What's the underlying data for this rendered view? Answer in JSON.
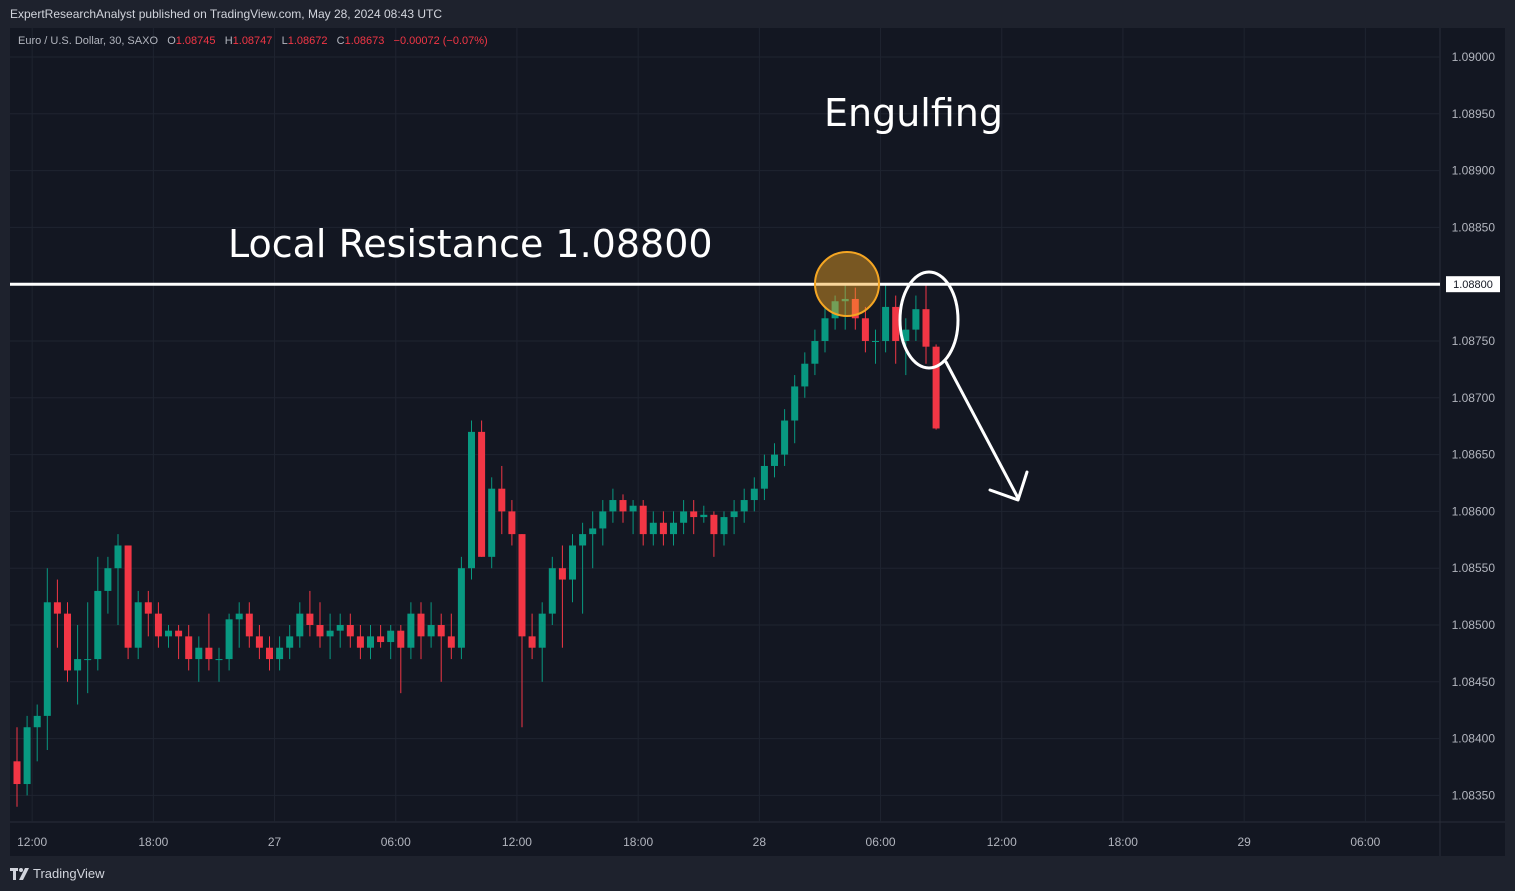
{
  "header": {
    "published": "ExpertResearchAnalyst published on TradingView.com, May 28, 2024 08:43 UTC"
  },
  "legend": {
    "symbol": "Euro / U.S. Dollar, 30, SAXO",
    "o_label": "O",
    "o_value": "1.08745",
    "h_label": "H",
    "h_value": "1.08747",
    "l_label": "L",
    "l_value": "1.08672",
    "c_label": "C",
    "c_value": "1.08673",
    "change": "−0.00072 (−0.07%)"
  },
  "footer": {
    "brand": "TradingView"
  },
  "colors": {
    "up": "#089981",
    "down": "#f23645",
    "background": "#131722",
    "grid": "#1f2430",
    "text": "#b2b5be",
    "highlight": "#f5a623"
  },
  "chart_data": {
    "type": "candlestick",
    "symbol": "EURUSD",
    "timeframe": "30",
    "ylim": [
      1.0832,
      1.0904
    ],
    "y_ticks": [
      "1.09000",
      "1.08950",
      "1.08900",
      "1.08850",
      "1.08800",
      "1.08750",
      "1.08700",
      "1.08650",
      "1.08600",
      "1.08550",
      "1.08500",
      "1.08450",
      "1.08400",
      "1.08350"
    ],
    "x_ticks": [
      "12:00",
      "18:00",
      "27",
      "06:00",
      "12:00",
      "18:00",
      "28",
      "06:00",
      "12:00",
      "18:00",
      "29",
      "06:00"
    ],
    "x_tick_index": [
      1.5,
      13.5,
      25.5,
      37.5,
      49.5,
      61.5,
      73.5,
      85.5,
      97.5,
      109.5,
      121.5,
      133.5
    ],
    "candles": [
      [
        1.0838,
        1.0841,
        1.0834,
        1.0836
      ],
      [
        1.0836,
        1.0842,
        1.0835,
        1.0841
      ],
      [
        1.0841,
        1.0843,
        1.0838,
        1.0842
      ],
      [
        1.0842,
        1.0855,
        1.0839,
        1.0852
      ],
      [
        1.0852,
        1.0854,
        1.0848,
        1.0851
      ],
      [
        1.0851,
        1.0852,
        1.0845,
        1.0846
      ],
      [
        1.0846,
        1.085,
        1.0843,
        1.0847
      ],
      [
        1.0847,
        1.0852,
        1.0844,
        1.0847
      ],
      [
        1.0847,
        1.0856,
        1.0846,
        1.0853
      ],
      [
        1.0853,
        1.0856,
        1.0851,
        1.0855
      ],
      [
        1.0855,
        1.0858,
        1.085,
        1.0857
      ],
      [
        1.0857,
        1.0857,
        1.0847,
        1.0848
      ],
      [
        1.0848,
        1.0853,
        1.0847,
        1.0852
      ],
      [
        1.0852,
        1.0853,
        1.0849,
        1.0851
      ],
      [
        1.0851,
        1.0852,
        1.0848,
        1.0849
      ],
      [
        1.0849,
        1.085,
        1.0848,
        1.08495
      ],
      [
        1.08495,
        1.085,
        1.0847,
        1.0849
      ],
      [
        1.0849,
        1.085,
        1.0846,
        1.0847
      ],
      [
        1.0847,
        1.0849,
        1.0845,
        1.0848
      ],
      [
        1.0848,
        1.0851,
        1.0846,
        1.0847
      ],
      [
        1.0847,
        1.0848,
        1.0845,
        1.0847
      ],
      [
        1.0847,
        1.0851,
        1.0846,
        1.08505
      ],
      [
        1.08505,
        1.0852,
        1.0848,
        1.0851
      ],
      [
        1.0851,
        1.0852,
        1.0848,
        1.0849
      ],
      [
        1.0849,
        1.085,
        1.0847,
        1.0848
      ],
      [
        1.0848,
        1.0849,
        1.0846,
        1.0847
      ],
      [
        1.0847,
        1.0849,
        1.0846,
        1.0848
      ],
      [
        1.0848,
        1.085,
        1.0847,
        1.0849
      ],
      [
        1.0849,
        1.0852,
        1.0848,
        1.0851
      ],
      [
        1.0851,
        1.0853,
        1.0849,
        1.085
      ],
      [
        1.085,
        1.0852,
        1.0848,
        1.0849
      ],
      [
        1.0849,
        1.0851,
        1.0847,
        1.08495
      ],
      [
        1.08495,
        1.0851,
        1.0848,
        1.085
      ],
      [
        1.085,
        1.0851,
        1.0848,
        1.0849
      ],
      [
        1.0849,
        1.085,
        1.0847,
        1.0848
      ],
      [
        1.0848,
        1.085,
        1.0847,
        1.0849
      ],
      [
        1.0849,
        1.085,
        1.0848,
        1.08485
      ],
      [
        1.08485,
        1.085,
        1.0847,
        1.08495
      ],
      [
        1.08495,
        1.085,
        1.0844,
        1.0848
      ],
      [
        1.0848,
        1.0852,
        1.0847,
        1.0851
      ],
      [
        1.0851,
        1.0852,
        1.0847,
        1.0849
      ],
      [
        1.0849,
        1.0852,
        1.0848,
        1.085
      ],
      [
        1.085,
        1.0851,
        1.0845,
        1.0849
      ],
      [
        1.0849,
        1.0851,
        1.0847,
        1.0848
      ],
      [
        1.0848,
        1.0856,
        1.0847,
        1.0855
      ],
      [
        1.0855,
        1.0868,
        1.0854,
        1.0867
      ],
      [
        1.0867,
        1.0868,
        1.0856,
        1.0856
      ],
      [
        1.0856,
        1.0863,
        1.0855,
        1.0862
      ],
      [
        1.0862,
        1.0864,
        1.0858,
        1.086
      ],
      [
        1.086,
        1.0861,
        1.0857,
        1.0858
      ],
      [
        1.0858,
        1.0858,
        1.0841,
        1.0849
      ],
      [
        1.0849,
        1.0851,
        1.0847,
        1.0848
      ],
      [
        1.0848,
        1.0852,
        1.0845,
        1.0851
      ],
      [
        1.0851,
        1.0856,
        1.085,
        1.0855
      ],
      [
        1.0855,
        1.0857,
        1.0848,
        1.0854
      ],
      [
        1.0854,
        1.0858,
        1.0852,
        1.0857
      ],
      [
        1.0857,
        1.0859,
        1.0851,
        1.0858
      ],
      [
        1.0858,
        1.086,
        1.0855,
        1.08585
      ],
      [
        1.08585,
        1.0861,
        1.0857,
        1.086
      ],
      [
        1.086,
        1.0862,
        1.0859,
        1.0861
      ],
      [
        1.0861,
        1.08615,
        1.0859,
        1.086
      ],
      [
        1.086,
        1.0861,
        1.0858,
        1.08605
      ],
      [
        1.08605,
        1.0861,
        1.0857,
        1.0858
      ],
      [
        1.0858,
        1.086,
        1.0857,
        1.0859
      ],
      [
        1.0859,
        1.086,
        1.0857,
        1.0858
      ],
      [
        1.0858,
        1.086,
        1.0857,
        1.0859
      ],
      [
        1.0859,
        1.0861,
        1.0858,
        1.086
      ],
      [
        1.086,
        1.0861,
        1.0858,
        1.08595
      ],
      [
        1.08595,
        1.08605,
        1.0859,
        1.08597
      ],
      [
        1.08597,
        1.086,
        1.0856,
        1.0858
      ],
      [
        1.0858,
        1.086,
        1.0857,
        1.08595
      ],
      [
        1.08595,
        1.0861,
        1.0858,
        1.086
      ],
      [
        1.086,
        1.0862,
        1.0859,
        1.0861
      ],
      [
        1.0861,
        1.0863,
        1.086,
        1.0862
      ],
      [
        1.0862,
        1.0865,
        1.0861,
        1.0864
      ],
      [
        1.0864,
        1.0866,
        1.0863,
        1.0865
      ],
      [
        1.0865,
        1.0869,
        1.0864,
        1.0868
      ],
      [
        1.0868,
        1.0872,
        1.0866,
        1.0871
      ],
      [
        1.0871,
        1.0874,
        1.087,
        1.0873
      ],
      [
        1.0873,
        1.0876,
        1.0872,
        1.0875
      ],
      [
        1.0875,
        1.0878,
        1.0874,
        1.0877
      ],
      [
        1.0877,
        1.0879,
        1.0876,
        1.08785
      ],
      [
        1.08785,
        1.088,
        1.0876,
        1.08787
      ],
      [
        1.08787,
        1.08797,
        1.0876,
        1.0877
      ],
      [
        1.0877,
        1.0878,
        1.0874,
        1.0875
      ],
      [
        1.0875,
        1.0876,
        1.0873,
        1.0875
      ],
      [
        1.0875,
        1.088,
        1.0874,
        1.0878
      ],
      [
        1.0878,
        1.0879,
        1.0873,
        1.0875
      ],
      [
        1.0875,
        1.0877,
        1.0872,
        1.0876
      ],
      [
        1.0876,
        1.0879,
        1.0875,
        1.08778
      ],
      [
        1.08778,
        1.088,
        1.0873,
        1.08745
      ],
      [
        1.08745,
        1.08747,
        1.08672,
        1.08673
      ]
    ]
  },
  "annotations": {
    "engulfing_label": "Engulfing",
    "resistance_label": "Local Resistance 1.08800",
    "resistance_price": 1.088,
    "resistance_tag": "1.08800"
  }
}
